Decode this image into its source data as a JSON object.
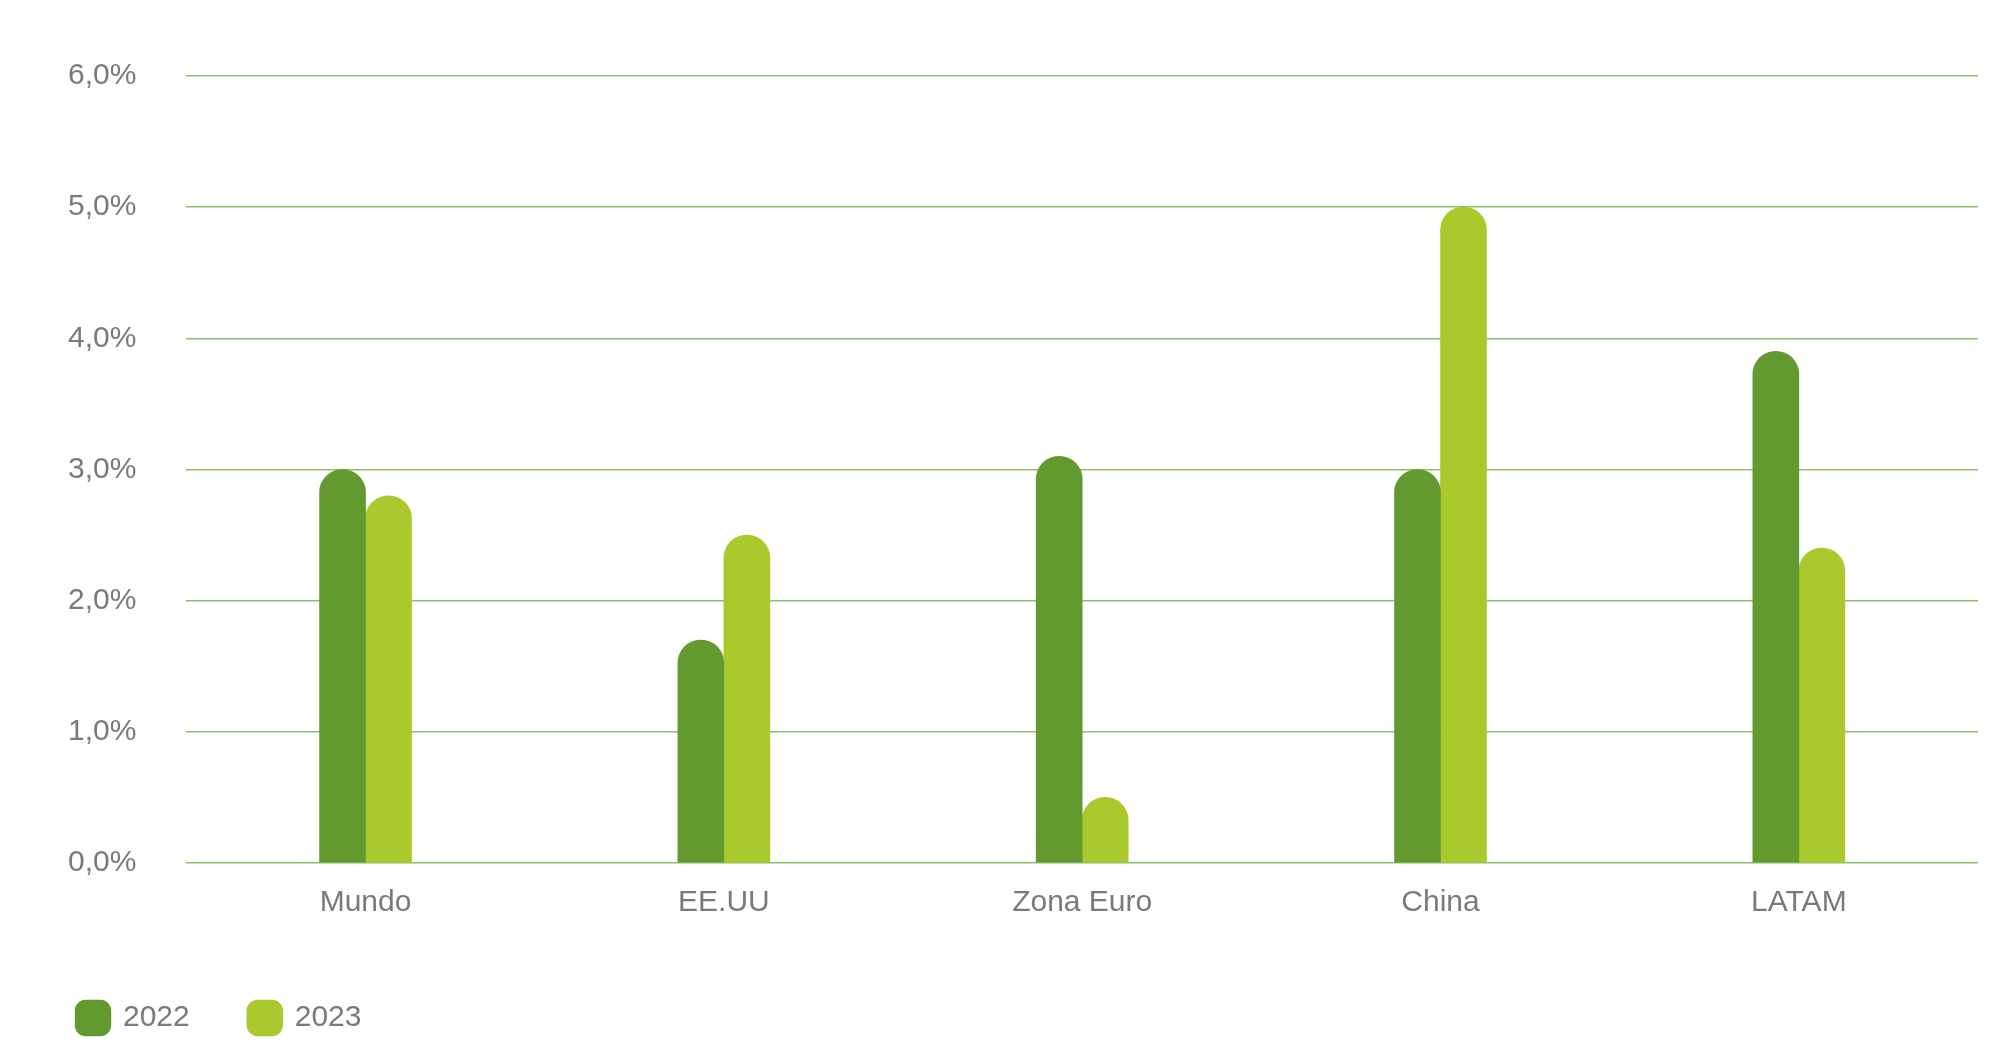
{
  "chart_data": {
    "type": "bar",
    "categories": [
      "Mundo",
      "EE.UU",
      "Zona Euro",
      "China",
      "LATAM"
    ],
    "series": [
      {
        "name": "2022",
        "color": "#629a30",
        "values": [
          3.0,
          1.7,
          3.1,
          3.0,
          3.9
        ]
      },
      {
        "name": "2023",
        "color": "#aac92c",
        "values": [
          2.8,
          2.5,
          0.5,
          5.0,
          2.4
        ]
      }
    ],
    "ylim": [
      0,
      6
    ],
    "yticks": [
      {
        "value": 0,
        "label": "0,0%"
      },
      {
        "value": 1,
        "label": "1,0%"
      },
      {
        "value": 2,
        "label": "2,0%"
      },
      {
        "value": 3,
        "label": "3,0%"
      },
      {
        "value": 4,
        "label": "4,0%"
      },
      {
        "value": 5,
        "label": "5,0%"
      },
      {
        "value": 6,
        "label": "6,0%"
      }
    ],
    "grid": "y",
    "legend": "bottom left"
  }
}
